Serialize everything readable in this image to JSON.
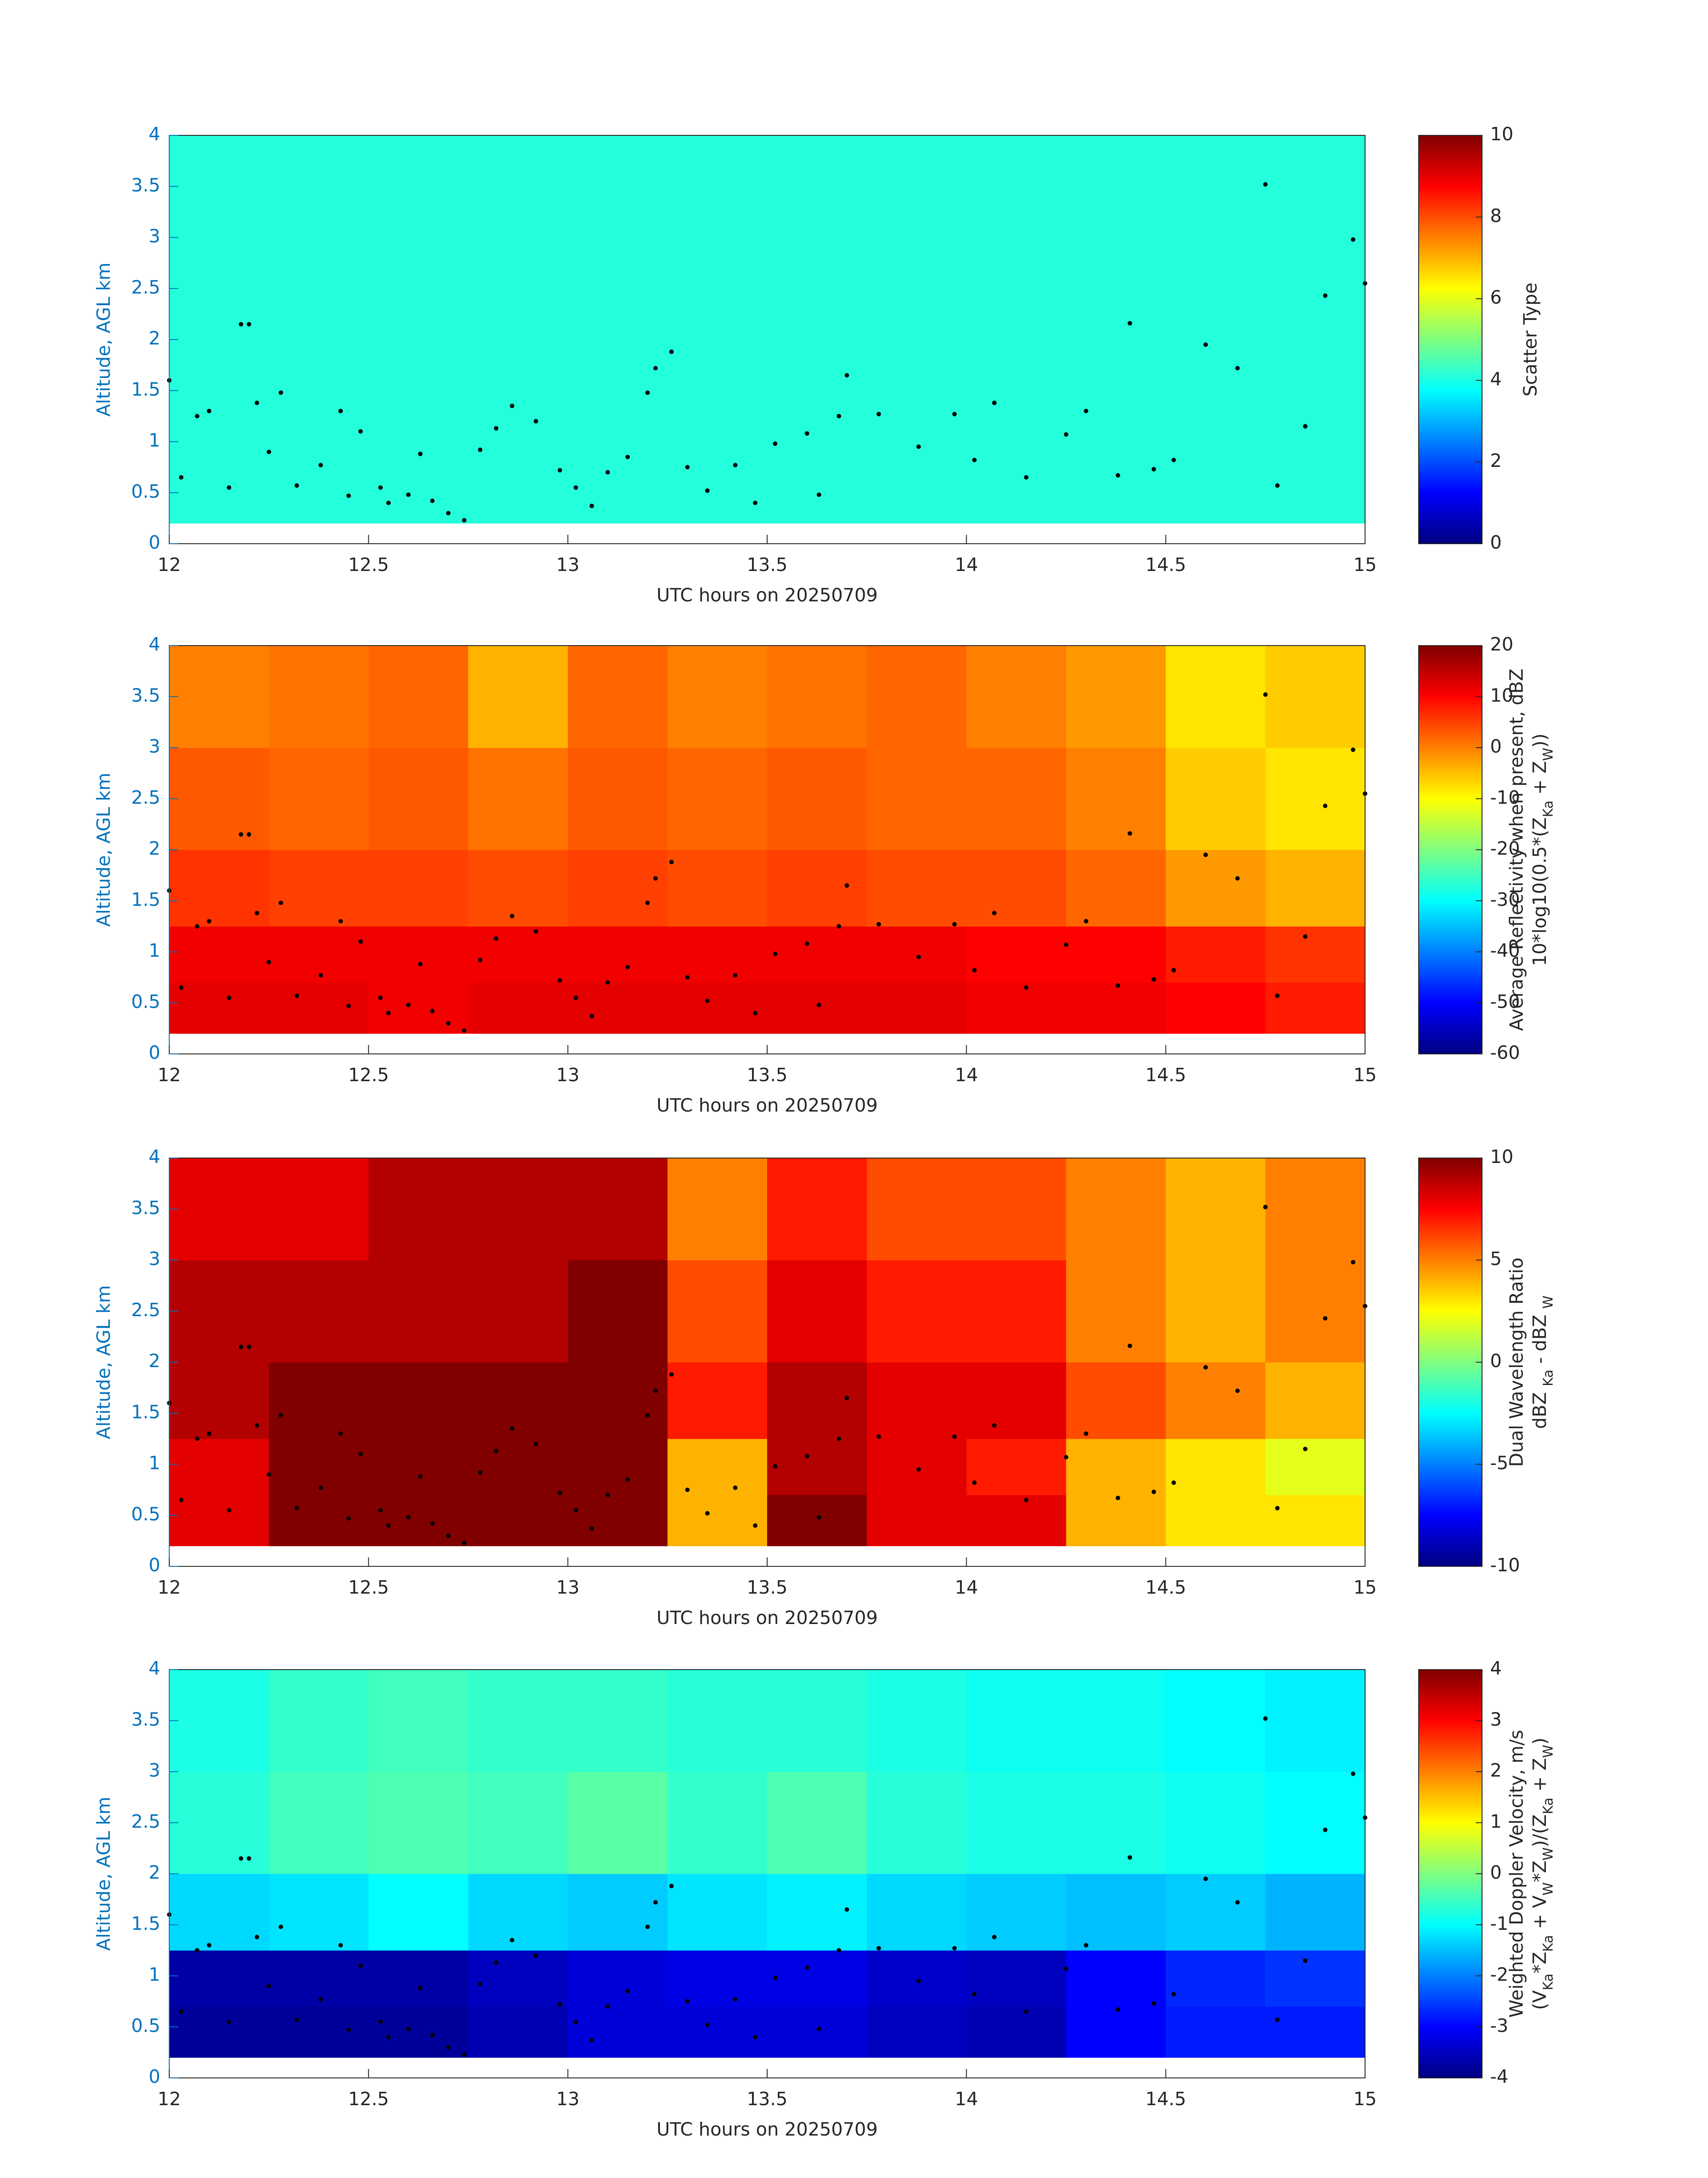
{
  "chart_data": [
    {
      "type": "heatmap",
      "xlabel": "UTC hours on 20250709",
      "ylabel": "Altitude, AGL km",
      "xlim": [
        12,
        15
      ],
      "xticks": [
        12,
        12.5,
        13,
        13.5,
        14,
        14.5,
        15
      ],
      "ylim": [
        0,
        4
      ],
      "yticks": [
        0,
        0.5,
        1,
        1.5,
        2,
        2.5,
        3,
        3.5,
        4
      ],
      "x_edges": [
        12,
        15
      ],
      "y_edges": [
        0.2,
        4
      ],
      "z": [
        [
          4.1
        ]
      ],
      "colormap": "jet",
      "clim": [
        0,
        10
      ],
      "cticks": [
        0,
        2,
        4,
        6,
        8,
        10
      ],
      "colorbar_label": [
        [
          {
            "text": "Scatter Type"
          }
        ]
      ],
      "points": {
        "color": "#000000",
        "x": [
          12.0,
          12.03,
          12.07,
          12.1,
          12.15,
          12.18,
          12.2,
          12.22,
          12.25,
          12.28,
          12.32,
          12.38,
          12.43,
          12.45,
          12.48,
          12.53,
          12.55,
          12.6,
          12.63,
          12.66,
          12.7,
          12.74,
          12.78,
          12.82,
          12.86,
          12.92,
          12.98,
          13.02,
          13.06,
          13.1,
          13.15,
          13.2,
          13.22,
          13.26,
          13.3,
          13.35,
          13.42,
          13.47,
          13.52,
          13.6,
          13.63,
          13.68,
          13.7,
          13.78,
          13.88,
          13.97,
          14.02,
          14.07,
          14.15,
          14.25,
          14.3,
          14.38,
          14.41,
          14.47,
          14.52,
          14.6,
          14.68,
          14.75,
          14.78,
          14.85,
          14.9,
          14.97,
          15.0
        ],
        "y": [
          1.6,
          0.65,
          1.25,
          1.3,
          0.55,
          2.15,
          2.15,
          1.38,
          0.9,
          1.48,
          0.57,
          0.77,
          1.3,
          0.47,
          1.1,
          0.55,
          0.4,
          0.48,
          0.88,
          0.42,
          0.3,
          0.23,
          0.92,
          1.13,
          1.35,
          1.2,
          0.72,
          0.55,
          0.37,
          0.7,
          0.85,
          1.48,
          1.72,
          1.88,
          0.75,
          0.52,
          0.77,
          0.4,
          0.98,
          1.08,
          0.48,
          1.25,
          1.65,
          1.27,
          0.95,
          1.27,
          0.82,
          1.38,
          0.65,
          1.07,
          1.3,
          0.67,
          2.16,
          0.73,
          0.82,
          1.95,
          1.72,
          3.52,
          0.57,
          1.15,
          2.43,
          2.98,
          2.55
        ]
      }
    },
    {
      "type": "heatmap",
      "xlabel": "UTC hours on 20250709",
      "ylabel": "Altitude, AGL km",
      "xlim": [
        12,
        15
      ],
      "xticks": [
        12,
        12.5,
        13,
        13.5,
        14,
        14.5,
        15
      ],
      "ylim": [
        0,
        4
      ],
      "yticks": [
        0,
        0.5,
        1,
        1.5,
        2,
        2.5,
        3,
        3.5,
        4
      ],
      "x_edges": [
        12,
        12.25,
        12.5,
        12.75,
        13,
        13.25,
        13.5,
        13.75,
        14,
        14.25,
        14.5,
        14.75,
        15
      ],
      "y_edges": [
        0.2,
        0.7,
        1.25,
        2,
        3,
        4
      ],
      "z": [
        [
          12,
          12,
          11,
          12,
          12,
          12,
          12,
          12,
          11,
          11,
          10,
          8
        ],
        [
          11,
          11,
          11,
          11,
          11,
          11,
          11,
          11,
          10,
          10,
          8,
          6
        ],
        [
          6,
          5,
          5,
          4,
          5,
          4,
          5,
          4,
          4,
          2,
          -2,
          -4
        ],
        [
          3,
          2,
          3,
          1,
          3,
          2,
          3,
          2,
          2,
          0,
          -6,
          -8
        ],
        [
          0,
          1,
          2,
          -4,
          2,
          0,
          1,
          2,
          0,
          -2,
          -8,
          -6
        ]
      ],
      "colormap": "jet",
      "clim": [
        -60,
        20
      ],
      "cticks": [
        -60,
        -50,
        -40,
        -30,
        -20,
        -10,
        0,
        10,
        20
      ],
      "colorbar_label": [
        [
          {
            "text": "Average Reflectivity when present, dBZ"
          }
        ],
        [
          {
            "text": "10*log10(0.5*(Z"
          },
          {
            "text": "Ka",
            "sub": true
          },
          {
            "text": " + Z"
          },
          {
            "text": "W",
            "sub": true
          },
          {
            "text": "))"
          }
        ]
      ],
      "points": {
        "color": "#000000",
        "x": [
          12.0,
          12.03,
          12.07,
          12.1,
          12.15,
          12.18,
          12.2,
          12.22,
          12.25,
          12.28,
          12.32,
          12.38,
          12.43,
          12.45,
          12.48,
          12.53,
          12.55,
          12.6,
          12.63,
          12.66,
          12.7,
          12.74,
          12.78,
          12.82,
          12.86,
          12.92,
          12.98,
          13.02,
          13.06,
          13.1,
          13.15,
          13.2,
          13.22,
          13.26,
          13.3,
          13.35,
          13.42,
          13.47,
          13.52,
          13.6,
          13.63,
          13.68,
          13.7,
          13.78,
          13.88,
          13.97,
          14.02,
          14.07,
          14.15,
          14.25,
          14.3,
          14.38,
          14.41,
          14.47,
          14.52,
          14.6,
          14.68,
          14.75,
          14.78,
          14.85,
          14.9,
          14.97,
          15.0
        ],
        "y": [
          1.6,
          0.65,
          1.25,
          1.3,
          0.55,
          2.15,
          2.15,
          1.38,
          0.9,
          1.48,
          0.57,
          0.77,
          1.3,
          0.47,
          1.1,
          0.55,
          0.4,
          0.48,
          0.88,
          0.42,
          0.3,
          0.23,
          0.92,
          1.13,
          1.35,
          1.2,
          0.72,
          0.55,
          0.37,
          0.7,
          0.85,
          1.48,
          1.72,
          1.88,
          0.75,
          0.52,
          0.77,
          0.4,
          0.98,
          1.08,
          0.48,
          1.25,
          1.65,
          1.27,
          0.95,
          1.27,
          0.82,
          1.38,
          0.65,
          1.07,
          1.3,
          0.67,
          2.16,
          0.73,
          0.82,
          1.95,
          1.72,
          3.52,
          0.57,
          1.15,
          2.43,
          2.98,
          2.55
        ]
      }
    },
    {
      "type": "heatmap",
      "xlabel": "UTC hours on 20250709",
      "ylabel": "Altitude, AGL km",
      "xlim": [
        12,
        15
      ],
      "xticks": [
        12,
        12.5,
        13,
        13.5,
        14,
        14.5,
        15
      ],
      "ylim": [
        0,
        4
      ],
      "yticks": [
        0,
        0.5,
        1,
        1.5,
        2,
        2.5,
        3,
        3.5,
        4
      ],
      "x_edges": [
        12,
        12.25,
        12.5,
        12.75,
        13,
        13.25,
        13.5,
        13.75,
        14,
        14.25,
        14.5,
        14.75,
        15
      ],
      "y_edges": [
        0.2,
        0.7,
        1.25,
        2,
        3,
        4
      ],
      "z": [
        [
          8,
          10,
          10,
          10,
          10,
          4,
          10,
          8,
          8,
          4,
          3,
          3
        ],
        [
          8,
          10,
          10,
          10,
          10,
          4,
          9,
          8,
          7,
          4,
          3,
          2
        ],
        [
          9,
          10,
          10,
          10,
          10,
          7,
          9,
          8,
          8,
          6,
          5,
          4
        ],
        [
          9,
          9,
          9,
          9,
          10,
          6,
          8,
          7,
          7,
          5,
          4,
          5
        ],
        [
          8,
          8,
          9,
          9,
          9,
          5,
          7,
          6,
          6,
          5,
          4,
          5
        ]
      ],
      "colormap": "jet",
      "clim": [
        -10,
        10
      ],
      "cticks": [
        -10,
        -5,
        0,
        5,
        10
      ],
      "colorbar_label": [
        [
          {
            "text": "Dual Wavelength Ratio"
          }
        ],
        [
          {
            "text": "dBZ "
          },
          {
            "text": "Ka",
            "sub": true
          },
          {
            "text": " - dBZ "
          },
          {
            "text": "W",
            "sub": true
          }
        ]
      ],
      "points": {
        "color": "#000000",
        "x": [
          12.0,
          12.03,
          12.07,
          12.1,
          12.15,
          12.18,
          12.2,
          12.22,
          12.25,
          12.28,
          12.32,
          12.38,
          12.43,
          12.45,
          12.48,
          12.53,
          12.55,
          12.6,
          12.63,
          12.66,
          12.7,
          12.74,
          12.78,
          12.82,
          12.86,
          12.92,
          12.98,
          13.02,
          13.06,
          13.1,
          13.15,
          13.2,
          13.22,
          13.26,
          13.3,
          13.35,
          13.42,
          13.47,
          13.52,
          13.6,
          13.63,
          13.68,
          13.7,
          13.78,
          13.88,
          13.97,
          14.02,
          14.07,
          14.15,
          14.25,
          14.3,
          14.38,
          14.41,
          14.47,
          14.52,
          14.6,
          14.68,
          14.75,
          14.78,
          14.85,
          14.9,
          14.97,
          15.0
        ],
        "y": [
          1.6,
          0.65,
          1.25,
          1.3,
          0.55,
          2.15,
          2.15,
          1.38,
          0.9,
          1.48,
          0.57,
          0.77,
          1.3,
          0.47,
          1.1,
          0.55,
          0.4,
          0.48,
          0.88,
          0.42,
          0.3,
          0.23,
          0.92,
          1.13,
          1.35,
          1.2,
          0.72,
          0.55,
          0.37,
          0.7,
          0.85,
          1.48,
          1.72,
          1.88,
          0.75,
          0.52,
          0.77,
          0.4,
          0.98,
          1.08,
          0.48,
          1.25,
          1.65,
          1.27,
          0.95,
          1.27,
          0.82,
          1.38,
          0.65,
          1.07,
          1.3,
          0.67,
          2.16,
          0.73,
          0.82,
          1.95,
          1.72,
          3.52,
          0.57,
          1.15,
          2.43,
          2.98,
          2.55
        ]
      }
    },
    {
      "type": "heatmap",
      "xlabel": "UTC hours on 20250709",
      "ylabel": "Altitude, AGL km",
      "xlim": [
        12,
        15
      ],
      "xticks": [
        12,
        12.5,
        13,
        13.5,
        14,
        14.5,
        15
      ],
      "ylim": [
        0,
        4
      ],
      "yticks": [
        0,
        0.5,
        1,
        1.5,
        2,
        2.5,
        3,
        3.5,
        4
      ],
      "x_edges": [
        12,
        12.25,
        12.5,
        12.75,
        13,
        13.25,
        13.5,
        13.75,
        14,
        14.25,
        14.5,
        14.75,
        15
      ],
      "y_edges": [
        0.2,
        0.7,
        1.25,
        2,
        3,
        4
      ],
      "z": [
        [
          -3.8,
          -3.8,
          -3.8,
          -3.6,
          -3.3,
          -3.3,
          -3.3,
          -3.5,
          -3.6,
          -3.0,
          -2.8,
          -2.8
        ],
        [
          -3.7,
          -3.7,
          -3.7,
          -3.5,
          -3.3,
          -3.2,
          -3.2,
          -3.4,
          -3.5,
          -3.0,
          -2.7,
          -2.6
        ],
        [
          -1.3,
          -1.2,
          -1.0,
          -1.3,
          -1.4,
          -1.2,
          -1.1,
          -1.3,
          -1.4,
          -1.5,
          -1.4,
          -1.6
        ],
        [
          -0.7,
          -0.5,
          -0.4,
          -0.5,
          -0.3,
          -0.6,
          -0.4,
          -0.7,
          -0.8,
          -0.8,
          -0.9,
          -1.0
        ],
        [
          -0.8,
          -0.6,
          -0.5,
          -0.6,
          -0.6,
          -0.7,
          -0.7,
          -0.8,
          -0.9,
          -0.9,
          -1.0,
          -1.1
        ]
      ],
      "colormap": "jet",
      "clim": [
        -4,
        4
      ],
      "cticks": [
        -4,
        -3,
        -2,
        -1,
        0,
        1,
        2,
        3,
        4
      ],
      "colorbar_label": [
        [
          {
            "text": "Weighted Doppler Velocity, m/s"
          }
        ],
        [
          {
            "text": "(V"
          },
          {
            "text": "Ka",
            "sub": true
          },
          {
            "text": "*Z"
          },
          {
            "text": "Ka",
            "sub": true
          },
          {
            "text": " + V"
          },
          {
            "text": "W",
            "sub": true
          },
          {
            "text": "*Z"
          },
          {
            "text": "W",
            "sub": true
          },
          {
            "text": ")/(Z"
          },
          {
            "text": "Ka",
            "sub": true
          },
          {
            "text": " + Z"
          },
          {
            "text": "W",
            "sub": true
          },
          {
            "text": ")"
          }
        ]
      ],
      "points": {
        "color": "#000000",
        "x": [
          12.0,
          12.03,
          12.07,
          12.1,
          12.15,
          12.18,
          12.2,
          12.22,
          12.25,
          12.28,
          12.32,
          12.38,
          12.43,
          12.45,
          12.48,
          12.53,
          12.55,
          12.6,
          12.63,
          12.66,
          12.7,
          12.74,
          12.78,
          12.82,
          12.86,
          12.92,
          12.98,
          13.02,
          13.06,
          13.1,
          13.15,
          13.2,
          13.22,
          13.26,
          13.3,
          13.35,
          13.42,
          13.47,
          13.52,
          13.6,
          13.63,
          13.68,
          13.7,
          13.78,
          13.88,
          13.97,
          14.02,
          14.07,
          14.15,
          14.25,
          14.3,
          14.38,
          14.41,
          14.47,
          14.52,
          14.6,
          14.68,
          14.75,
          14.78,
          14.85,
          14.9,
          14.97,
          15.0
        ],
        "y": [
          1.6,
          0.65,
          1.25,
          1.3,
          0.55,
          2.15,
          2.15,
          1.38,
          0.9,
          1.48,
          0.57,
          0.77,
          1.3,
          0.47,
          1.1,
          0.55,
          0.4,
          0.48,
          0.88,
          0.42,
          0.3,
          0.23,
          0.92,
          1.13,
          1.35,
          1.2,
          0.72,
          0.55,
          0.37,
          0.7,
          0.85,
          1.48,
          1.72,
          1.88,
          0.75,
          0.52,
          0.77,
          0.4,
          0.98,
          1.08,
          0.48,
          1.25,
          1.65,
          1.27,
          0.95,
          1.27,
          0.82,
          1.38,
          0.65,
          1.07,
          1.3,
          0.67,
          2.16,
          0.73,
          0.82,
          1.95,
          1.72,
          3.52,
          0.57,
          1.15,
          2.43,
          2.98,
          2.55
        ]
      }
    }
  ]
}
